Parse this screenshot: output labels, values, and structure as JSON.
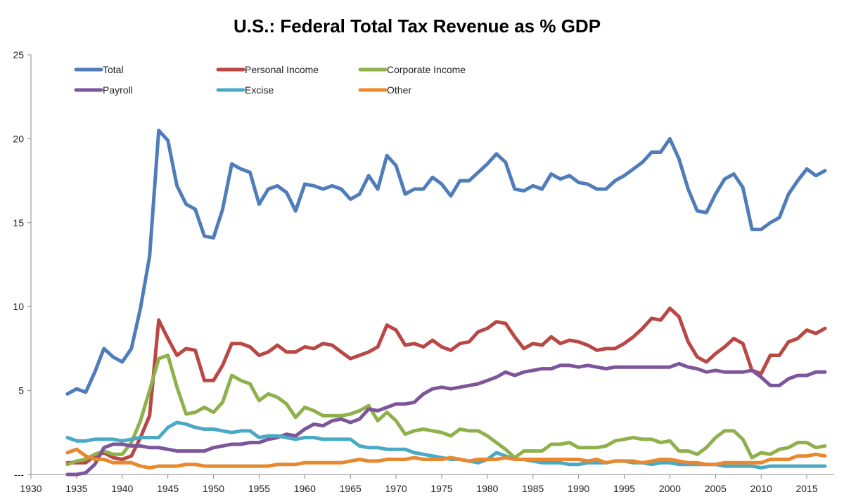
{
  "chart_data": {
    "type": "line",
    "title": "U.S.: Federal Total Tax Revenue as % GDP",
    "xlabel": "",
    "ylabel": "",
    "xlim": [
      1930,
      2018
    ],
    "ylim": [
      0,
      25
    ],
    "x_ticks": [
      "1930",
      "1935",
      "1940",
      "1945",
      "1950",
      "1955",
      "1960",
      "1965",
      "1970",
      "1975",
      "1980",
      "1985",
      "1990",
      "1995",
      "2000",
      "2005",
      "2010",
      "2015"
    ],
    "y_ticks": [
      "---",
      "5",
      "10",
      "15",
      "20",
      "25"
    ],
    "grid": false,
    "legend_position": "top-left",
    "series": [
      {
        "name": "Total",
        "color": "#4F7DBA",
        "x": [
          1934,
          1935,
          1936,
          1937,
          1938,
          1939,
          1940,
          1941,
          1942,
          1943,
          1944,
          1945,
          1946,
          1947,
          1948,
          1949,
          1950,
          1951,
          1952,
          1953,
          1954,
          1955,
          1956,
          1957,
          1958,
          1959,
          1960,
          1961,
          1962,
          1963,
          1964,
          1965,
          1966,
          1967,
          1968,
          1969,
          1970,
          1971,
          1972,
          1973,
          1974,
          1975,
          1976,
          1977,
          1978,
          1979,
          1980,
          1981,
          1982,
          1983,
          1984,
          1985,
          1986,
          1987,
          1988,
          1989,
          1990,
          1991,
          1992,
          1993,
          1994,
          1995,
          1996,
          1997,
          1998,
          1999,
          2000,
          2001,
          2002,
          2003,
          2004,
          2005,
          2006,
          2007,
          2008,
          2009,
          2010,
          2011,
          2012,
          2013,
          2014,
          2015,
          2016,
          2017
        ],
        "values": [
          4.8,
          5.1,
          4.9,
          6.1,
          7.5,
          7.0,
          6.7,
          7.5,
          9.9,
          13.0,
          20.5,
          19.9,
          17.2,
          16.1,
          15.8,
          14.2,
          14.1,
          15.8,
          18.5,
          18.2,
          18.0,
          16.1,
          17.0,
          17.2,
          16.8,
          15.7,
          17.3,
          17.2,
          17.0,
          17.2,
          17.0,
          16.4,
          16.7,
          17.8,
          17.0,
          19.0,
          18.4,
          16.7,
          17.0,
          17.0,
          17.7,
          17.3,
          16.6,
          17.5,
          17.5,
          18.0,
          18.5,
          19.1,
          18.6,
          17.0,
          16.9,
          17.2,
          17.0,
          17.9,
          17.6,
          17.8,
          17.4,
          17.3,
          17.0,
          17.0,
          17.5,
          17.8,
          18.2,
          18.6,
          19.2,
          19.2,
          20.0,
          18.8,
          17.0,
          15.7,
          15.6,
          16.7,
          17.6,
          17.9,
          17.1,
          14.6,
          14.6,
          15.0,
          15.3,
          16.7,
          17.5,
          18.2,
          17.8,
          18.1
        ]
      },
      {
        "name": "Personal Income",
        "color": "#B94743",
        "x": [
          1934,
          1935,
          1936,
          1937,
          1938,
          1939,
          1940,
          1941,
          1942,
          1943,
          1944,
          1945,
          1946,
          1947,
          1948,
          1949,
          1950,
          1951,
          1952,
          1953,
          1954,
          1955,
          1956,
          1957,
          1958,
          1959,
          1960,
          1961,
          1962,
          1963,
          1964,
          1965,
          1966,
          1967,
          1968,
          1969,
          1970,
          1971,
          1972,
          1973,
          1974,
          1975,
          1976,
          1977,
          1978,
          1979,
          1980,
          1981,
          1982,
          1983,
          1984,
          1985,
          1986,
          1987,
          1988,
          1989,
          1990,
          1991,
          1992,
          1993,
          1994,
          1995,
          1996,
          1997,
          1998,
          1999,
          2000,
          2001,
          2002,
          2003,
          2004,
          2005,
          2006,
          2007,
          2008,
          2009,
          2010,
          2011,
          2012,
          2013,
          2014,
          2015,
          2016,
          2017
        ],
        "values": [
          0.7,
          0.7,
          0.7,
          1.1,
          1.3,
          1.0,
          0.9,
          1.1,
          2.2,
          3.5,
          9.2,
          8.1,
          7.1,
          7.5,
          7.4,
          5.6,
          5.6,
          6.5,
          7.8,
          7.8,
          7.6,
          7.1,
          7.3,
          7.7,
          7.3,
          7.3,
          7.6,
          7.5,
          7.8,
          7.7,
          7.3,
          6.9,
          7.1,
          7.3,
          7.6,
          8.9,
          8.6,
          7.7,
          7.8,
          7.6,
          8.0,
          7.6,
          7.4,
          7.8,
          7.9,
          8.5,
          8.7,
          9.1,
          9.0,
          8.2,
          7.5,
          7.8,
          7.7,
          8.2,
          7.8,
          8.0,
          7.9,
          7.7,
          7.4,
          7.5,
          7.5,
          7.8,
          8.2,
          8.7,
          9.3,
          9.2,
          9.9,
          9.4,
          7.9,
          7.0,
          6.7,
          7.2,
          7.6,
          8.1,
          7.8,
          6.2,
          6.0,
          7.1,
          7.1,
          7.9,
          8.1,
          8.6,
          8.4,
          8.7
        ]
      },
      {
        "name": "Corporate Income",
        "color": "#8FB04B",
        "x": [
          1934,
          1935,
          1936,
          1937,
          1938,
          1939,
          1940,
          1941,
          1942,
          1943,
          1944,
          1945,
          1946,
          1947,
          1948,
          1949,
          1950,
          1951,
          1952,
          1953,
          1954,
          1955,
          1956,
          1957,
          1958,
          1959,
          1960,
          1961,
          1962,
          1963,
          1964,
          1965,
          1966,
          1967,
          1968,
          1969,
          1970,
          1971,
          1972,
          1973,
          1974,
          1975,
          1976,
          1977,
          1978,
          1979,
          1980,
          1981,
          1982,
          1983,
          1984,
          1985,
          1986,
          1987,
          1988,
          1989,
          1990,
          1991,
          1992,
          1993,
          1994,
          1995,
          1996,
          1997,
          1998,
          1999,
          2000,
          2001,
          2002,
          2003,
          2004,
          2005,
          2006,
          2007,
          2008,
          2009,
          2010,
          2011,
          2012,
          2013,
          2014,
          2015,
          2016,
          2017
        ],
        "values": [
          0.6,
          0.8,
          0.9,
          1.2,
          1.4,
          1.2,
          1.2,
          1.9,
          3.2,
          5.0,
          6.9,
          7.1,
          5.2,
          3.6,
          3.7,
          4.0,
          3.7,
          4.3,
          5.9,
          5.6,
          5.4,
          4.4,
          4.8,
          4.6,
          4.2,
          3.4,
          4.0,
          3.8,
          3.5,
          3.5,
          3.5,
          3.6,
          3.8,
          4.1,
          3.2,
          3.7,
          3.2,
          2.4,
          2.6,
          2.7,
          2.6,
          2.5,
          2.3,
          2.7,
          2.6,
          2.6,
          2.3,
          1.9,
          1.5,
          1.0,
          1.4,
          1.4,
          1.4,
          1.8,
          1.8,
          1.9,
          1.6,
          1.6,
          1.6,
          1.7,
          2.0,
          2.1,
          2.2,
          2.1,
          2.1,
          1.9,
          2.0,
          1.4,
          1.4,
          1.2,
          1.6,
          2.2,
          2.6,
          2.6,
          2.1,
          1.0,
          1.3,
          1.2,
          1.5,
          1.6,
          1.9,
          1.9,
          1.6,
          1.7
        ]
      },
      {
        "name": "Payroll",
        "color": "#7C559B",
        "x": [
          1934,
          1935,
          1936,
          1937,
          1938,
          1939,
          1940,
          1941,
          1942,
          1943,
          1944,
          1945,
          1946,
          1947,
          1948,
          1949,
          1950,
          1951,
          1952,
          1953,
          1954,
          1955,
          1956,
          1957,
          1958,
          1959,
          1960,
          1961,
          1962,
          1963,
          1964,
          1965,
          1966,
          1967,
          1968,
          1969,
          1970,
          1971,
          1972,
          1973,
          1974,
          1975,
          1976,
          1977,
          1978,
          1979,
          1980,
          1981,
          1982,
          1983,
          1984,
          1985,
          1986,
          1987,
          1988,
          1989,
          1990,
          1991,
          1992,
          1993,
          1994,
          1995,
          1996,
          1997,
          1998,
          1999,
          2000,
          2001,
          2002,
          2003,
          2004,
          2005,
          2006,
          2007,
          2008,
          2009,
          2010,
          2011,
          2012,
          2013,
          2014,
          2015,
          2016,
          2017
        ],
        "values": [
          0.0,
          0.0,
          0.1,
          0.6,
          1.6,
          1.8,
          1.8,
          1.7,
          1.7,
          1.6,
          1.6,
          1.5,
          1.4,
          1.4,
          1.4,
          1.4,
          1.6,
          1.7,
          1.8,
          1.8,
          1.9,
          1.9,
          2.1,
          2.2,
          2.4,
          2.3,
          2.7,
          3.0,
          2.9,
          3.2,
          3.3,
          3.1,
          3.3,
          3.9,
          3.8,
          4.0,
          4.2,
          4.2,
          4.3,
          4.8,
          5.1,
          5.2,
          5.1,
          5.2,
          5.3,
          5.4,
          5.6,
          5.8,
          6.1,
          5.9,
          6.1,
          6.2,
          6.3,
          6.3,
          6.5,
          6.5,
          6.4,
          6.5,
          6.4,
          6.3,
          6.4,
          6.4,
          6.4,
          6.4,
          6.4,
          6.4,
          6.4,
          6.6,
          6.4,
          6.3,
          6.1,
          6.2,
          6.1,
          6.1,
          6.1,
          6.2,
          5.8,
          5.3,
          5.3,
          5.7,
          5.9,
          5.9,
          6.1,
          6.1
        ]
      },
      {
        "name": "Excise",
        "color": "#4AAAC5",
        "x": [
          1934,
          1935,
          1936,
          1937,
          1938,
          1939,
          1940,
          1941,
          1942,
          1943,
          1944,
          1945,
          1946,
          1947,
          1948,
          1949,
          1950,
          1951,
          1952,
          1953,
          1954,
          1955,
          1956,
          1957,
          1958,
          1959,
          1960,
          1961,
          1962,
          1963,
          1964,
          1965,
          1966,
          1967,
          1968,
          1969,
          1970,
          1971,
          1972,
          1973,
          1974,
          1975,
          1976,
          1977,
          1978,
          1979,
          1980,
          1981,
          1982,
          1983,
          1984,
          1985,
          1986,
          1987,
          1988,
          1989,
          1990,
          1991,
          1992,
          1993,
          1994,
          1995,
          1996,
          1997,
          1998,
          1999,
          2000,
          2001,
          2002,
          2003,
          2004,
          2005,
          2006,
          2007,
          2008,
          2009,
          2010,
          2011,
          2012,
          2013,
          2014,
          2015,
          2016,
          2017
        ],
        "values": [
          2.2,
          2.0,
          2.0,
          2.1,
          2.1,
          2.1,
          2.0,
          2.1,
          2.2,
          2.2,
          2.2,
          2.8,
          3.1,
          3.0,
          2.8,
          2.7,
          2.7,
          2.6,
          2.5,
          2.6,
          2.6,
          2.2,
          2.3,
          2.3,
          2.2,
          2.1,
          2.2,
          2.2,
          2.1,
          2.1,
          2.1,
          2.1,
          1.7,
          1.6,
          1.6,
          1.5,
          1.5,
          1.5,
          1.3,
          1.2,
          1.1,
          1.0,
          0.9,
          0.9,
          0.8,
          0.7,
          0.9,
          1.3,
          1.1,
          0.9,
          0.9,
          0.8,
          0.7,
          0.7,
          0.7,
          0.6,
          0.6,
          0.7,
          0.7,
          0.7,
          0.8,
          0.8,
          0.7,
          0.7,
          0.6,
          0.7,
          0.7,
          0.6,
          0.6,
          0.6,
          0.6,
          0.6,
          0.5,
          0.5,
          0.5,
          0.5,
          0.4,
          0.5,
          0.5,
          0.5,
          0.5,
          0.5,
          0.5,
          0.5
        ]
      },
      {
        "name": "Other",
        "color": "#E8892F",
        "x": [
          1934,
          1935,
          1936,
          1937,
          1938,
          1939,
          1940,
          1941,
          1942,
          1943,
          1944,
          1945,
          1946,
          1947,
          1948,
          1949,
          1950,
          1951,
          1952,
          1953,
          1954,
          1955,
          1956,
          1957,
          1958,
          1959,
          1960,
          1961,
          1962,
          1963,
          1964,
          1965,
          1966,
          1967,
          1968,
          1969,
          1970,
          1971,
          1972,
          1973,
          1974,
          1975,
          1976,
          1977,
          1978,
          1979,
          1980,
          1981,
          1982,
          1983,
          1984,
          1985,
          1986,
          1987,
          1988,
          1989,
          1990,
          1991,
          1992,
          1993,
          1994,
          1995,
          1996,
          1997,
          1998,
          1999,
          2000,
          2001,
          2002,
          2003,
          2004,
          2005,
          2006,
          2007,
          2008,
          2009,
          2010,
          2011,
          2012,
          2013,
          2014,
          2015,
          2016,
          2017
        ],
        "values": [
          1.3,
          1.5,
          1.1,
          0.9,
          0.9,
          0.7,
          0.7,
          0.7,
          0.5,
          0.4,
          0.5,
          0.5,
          0.5,
          0.6,
          0.6,
          0.5,
          0.5,
          0.5,
          0.5,
          0.5,
          0.5,
          0.5,
          0.5,
          0.6,
          0.6,
          0.6,
          0.7,
          0.7,
          0.7,
          0.7,
          0.7,
          0.8,
          0.9,
          0.8,
          0.8,
          0.9,
          0.9,
          0.9,
          1.0,
          0.9,
          0.9,
          0.9,
          1.0,
          0.9,
          0.8,
          0.9,
          0.9,
          0.9,
          1.0,
          0.9,
          0.9,
          0.9,
          0.9,
          0.9,
          0.9,
          0.9,
          0.9,
          0.8,
          0.9,
          0.7,
          0.8,
          0.8,
          0.8,
          0.7,
          0.8,
          0.9,
          0.9,
          0.8,
          0.7,
          0.7,
          0.6,
          0.6,
          0.7,
          0.7,
          0.7,
          0.7,
          0.7,
          0.9,
          0.9,
          0.9,
          1.1,
          1.1,
          1.2,
          1.1
        ]
      }
    ]
  }
}
